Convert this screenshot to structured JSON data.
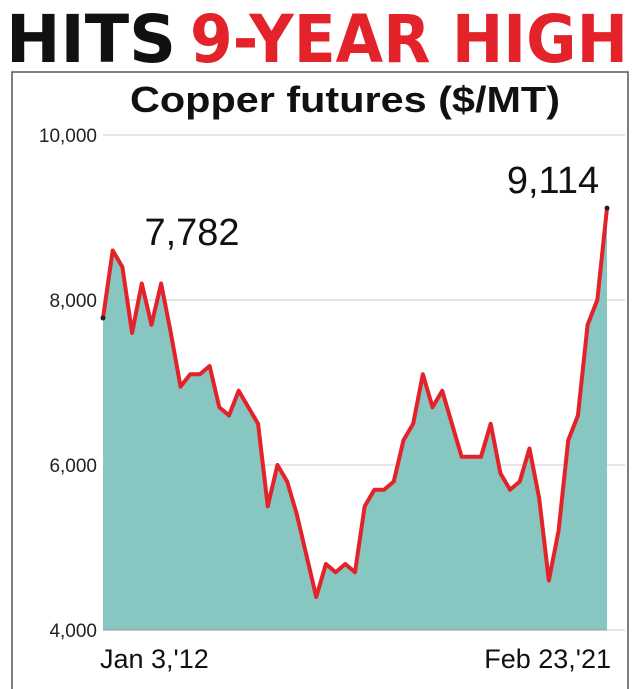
{
  "headline": [
    {
      "text": "HITS",
      "color": "#111111"
    },
    {
      "text": "9-YEAR HIGH",
      "color": "#e3222a"
    }
  ],
  "chart_data": {
    "type": "area",
    "title": "Copper futures ($/MT)",
    "categories": [
      "Jan 3,'12",
      null,
      null,
      null,
      null,
      null,
      null,
      null,
      null,
      null,
      null,
      null,
      null,
      null,
      null,
      null,
      null,
      null,
      null,
      null,
      null,
      null,
      null,
      null,
      null,
      null,
      null,
      null,
      null,
      null,
      null,
      null,
      null,
      null,
      null,
      null,
      null,
      null,
      null,
      null,
      null,
      null,
      null,
      null,
      null,
      null,
      null,
      null,
      null,
      null,
      null,
      null,
      "Feb 23,'21"
    ],
    "series": [
      {
        "name": "Copper futures",
        "color": "#e3222a",
        "fill": "#88c6c2",
        "values": [
          7782,
          8600,
          8400,
          7600,
          8200,
          7700,
          8200,
          7600,
          6950,
          7100,
          7100,
          7200,
          6700,
          6600,
          6900,
          6700,
          6500,
          5500,
          6000,
          5800,
          5400,
          4900,
          4400,
          4800,
          4700,
          4800,
          4700,
          5500,
          5700,
          5700,
          5800,
          6300,
          6500,
          7100,
          6700,
          6900,
          6500,
          6100,
          6100,
          6100,
          6500,
          5900,
          5700,
          5800,
          6200,
          5600,
          4600,
          5200,
          6300,
          6600,
          7700,
          8000,
          9114
        ],
        "value_labels": [
          "7,782",
          null,
          null,
          null,
          null,
          null,
          null,
          null,
          null,
          null,
          null,
          null,
          null,
          null,
          null,
          null,
          null,
          null,
          null,
          null,
          null,
          null,
          null,
          null,
          null,
          null,
          null,
          null,
          null,
          null,
          null,
          null,
          null,
          null,
          null,
          null,
          null,
          null,
          null,
          null,
          null,
          null,
          null,
          null,
          null,
          null,
          null,
          null,
          null,
          null,
          null,
          null,
          "9,114"
        ]
      }
    ],
    "ylim": [
      4000,
      10000
    ],
    "yticks": [
      {
        "value": 4000,
        "label": "4,000"
      },
      {
        "value": 6000,
        "label": "6,000"
      },
      {
        "value": 8000,
        "label": "8,000"
      },
      {
        "value": 10000,
        "label": "10,000"
      }
    ],
    "grid": true
  }
}
